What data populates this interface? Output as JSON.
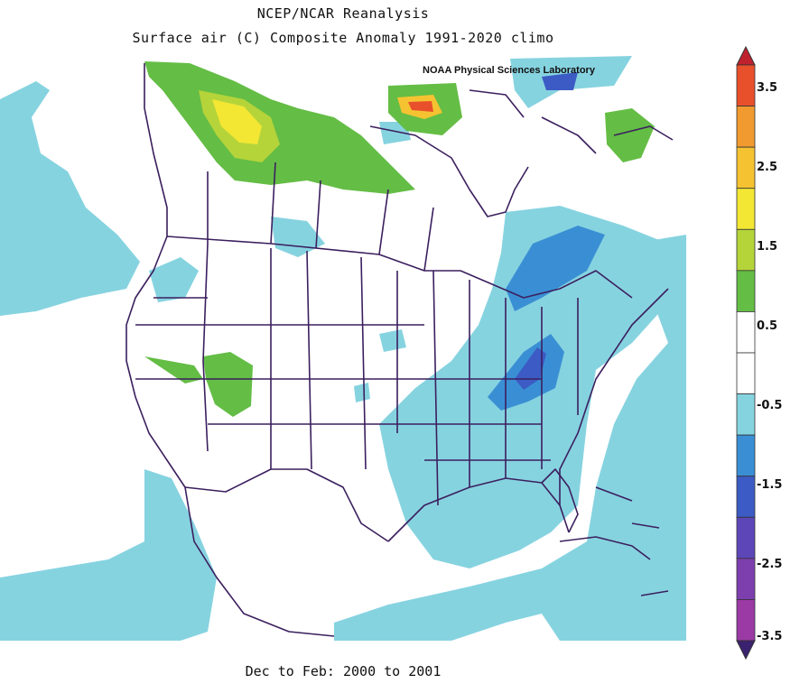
{
  "title": {
    "line1": "NCEP/NCAR Reanalysis",
    "line2": "Surface air (C) Composite Anomaly 1991-2020 climo"
  },
  "credit": "NOAA Physical Sciences Laboratory",
  "period": "Dec to Feb: 2000 to 2001",
  "legend": {
    "labels": [
      "3.5",
      "2.5",
      "1.5",
      "0.5",
      "-0.5",
      "-1.5",
      "-2.5",
      "-3.5"
    ],
    "bins": [
      {
        "range": "> 3.5",
        "color": "#c0212f"
      },
      {
        "range": "3 to 3.5",
        "color": "#e8502c"
      },
      {
        "range": "2.5 to 3",
        "color": "#f09a2f"
      },
      {
        "range": "2 to 2.5",
        "color": "#f5c331"
      },
      {
        "range": "1.5 to 2",
        "color": "#f3e734"
      },
      {
        "range": "1 to 1.5",
        "color": "#b5d43a"
      },
      {
        "range": "0.5 to 1",
        "color": "#64bd45"
      },
      {
        "range": "0 to 0.5",
        "color": "#ffffff"
      },
      {
        "range": "-0.5 to 0",
        "color": "#ffffff"
      },
      {
        "range": "-1 to -0.5",
        "color": "#86d3e0"
      },
      {
        "range": "-1.5 to -1",
        "color": "#3a8fd4"
      },
      {
        "range": "-2 to -1.5",
        "color": "#3c5bc4"
      },
      {
        "range": "-2.5 to -2",
        "color": "#5d47b8"
      },
      {
        "range": "-3 to -2.5",
        "color": "#7d3fae"
      },
      {
        "range": "-3.5 to -3",
        "color": "#9b3aa5"
      },
      {
        "range": "< -3.5",
        "color": "#3b2270"
      }
    ]
  },
  "colors": {
    "cool": "#86d3e0",
    "cold": "#3a8fd4",
    "colder": "#3c5bc4",
    "warm": "#64bd45",
    "warmer": "#b5d43a",
    "hot": "#f3e734",
    "hotter": "#f5c331",
    "hottest": "#e8502c",
    "lines": "#3b1f5e"
  }
}
